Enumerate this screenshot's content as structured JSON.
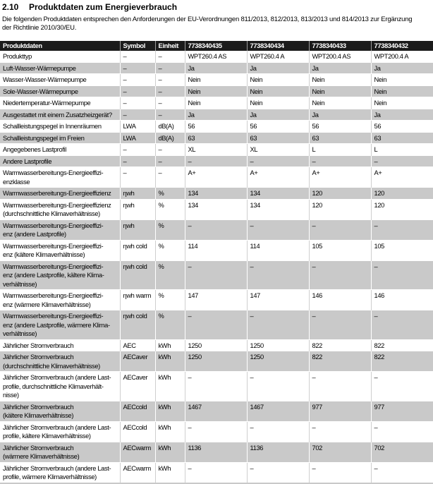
{
  "heading": {
    "number": "2.10",
    "title": "Produktdaten zum Energieverbrauch"
  },
  "intro": {
    "text": "Die folgenden Produktdaten entsprechen den Anforderungen der EU-Verordnungen 811/2013, 812/2013, 813/2013 und 814/2013 zur Ergänzung\nder Richtlinie 2010/30/EU."
  },
  "table": {
    "headers": [
      "Produktdaten",
      "Symbol",
      "Einheit",
      "7738340435",
      "7738340434",
      "7738340433",
      "7738340432"
    ],
    "rows": [
      {
        "label": "Produkttyp",
        "symbol": "–",
        "unit": "–",
        "values": [
          "WPT260.4 AS",
          "WPT260.4 A",
          "WPT200.4 AS",
          "WPT200.4 A"
        ]
      },
      {
        "label": "Luft-Wasser-Wärmepumpe",
        "symbol": "–",
        "unit": "–",
        "values": [
          "Ja",
          "Ja",
          "Ja",
          "Ja"
        ]
      },
      {
        "label": "Wasser-Wasser-Wärmepumpe",
        "symbol": "–",
        "unit": "–",
        "values": [
          "Nein",
          "Nein",
          "Nein",
          "Nein"
        ]
      },
      {
        "label": "Sole-Wasser-Wärmepumpe",
        "symbol": "–",
        "unit": "–",
        "values": [
          "Nein",
          "Nein",
          "Nein",
          "Nein"
        ]
      },
      {
        "label": "Niedertemperatur-Wärmepumpe",
        "symbol": "–",
        "unit": "–",
        "values": [
          "Nein",
          "Nein",
          "Nein",
          "Nein"
        ]
      },
      {
        "label": "Ausgestattet mit einem Zusatzheizgerät?",
        "symbol": "–",
        "unit": "–",
        "values": [
          "Ja",
          "Ja",
          "Ja",
          "Ja"
        ]
      },
      {
        "label": "Schallleistungspegel in Innenräumen",
        "symbol": "LWA",
        "unit": "dB(A)",
        "values": [
          "56",
          "56",
          "56",
          "56"
        ]
      },
      {
        "label": "Schallleistungspegel im Freien",
        "symbol": "LWA",
        "unit": "dB(A)",
        "values": [
          "63",
          "63",
          "63",
          "63"
        ]
      },
      {
        "label": "Angegebenes Lastprofil",
        "symbol": "–",
        "unit": "–",
        "values": [
          "XL",
          "XL",
          "L",
          "L"
        ]
      },
      {
        "label": "Andere Lastprofile",
        "symbol": "–",
        "unit": "–",
        "values": [
          "–",
          "–",
          "–",
          "–"
        ]
      },
      {
        "label": "Warmwasserbereitungs-Energieeffizi-\nenzklasse",
        "symbol": "–",
        "unit": "–",
        "values": [
          "A+",
          "A+",
          "A+",
          "A+"
        ]
      },
      {
        "label": "Warmwasserbereitungs-Energieeffizienz",
        "symbol": "ηwh",
        "unit": "%",
        "values": [
          "134",
          "134",
          "120",
          "120"
        ]
      },
      {
        "label": "Warmwasserbereitungs-Energieeffizienz\n(durchschnittliche Klimaverhältnisse)",
        "symbol": "ηwh",
        "unit": "%",
        "values": [
          "134",
          "134",
          "120",
          "120"
        ]
      },
      {
        "label": "Warmwasserbereitungs-Energieeffizi-\nenz (andere Lastprofile)",
        "symbol": "ηwh",
        "unit": "%",
        "values": [
          "–",
          "–",
          "–",
          "–"
        ]
      },
      {
        "label": "Warmwasserbereitungs-Energieeffizi-\nenz (kältere Klimaverhältnisse)",
        "symbol": "ηwh cold",
        "unit": "%",
        "values": [
          "114",
          "114",
          "105",
          "105"
        ]
      },
      {
        "label": "Warmwasserbereitungs-Energieeffizi-\nenz (andere Lastprofile, kältere Klima-\nverhältnisse)",
        "symbol": "ηwh cold",
        "unit": "%",
        "values": [
          "–",
          "–",
          "–",
          "–"
        ]
      },
      {
        "label": "Warmwasserbereitungs-Energieeffizi-\nenz (wärmere Klimaverhältnisse)",
        "symbol": "ηwh warm",
        "unit": "%",
        "values": [
          "147",
          "147",
          "146",
          "146"
        ]
      },
      {
        "label": "Warmwasserbereitungs-Energieeffizi-\nenz (andere Lastprofile, wärmere Klima-\nverhältnisse)",
        "symbol": "ηwh cold",
        "unit": "%",
        "values": [
          "–",
          "–",
          "–",
          "–"
        ]
      },
      {
        "label": "Jährlicher Stromverbrauch",
        "symbol": "AEC",
        "unit": "kWh",
        "values": [
          "1250",
          "1250",
          "822",
          "822"
        ]
      },
      {
        "label": "Jährlicher Stromverbrauch\n(durchschnittliche Klimaverhältnisse)",
        "symbol": "AECaver",
        "unit": "kWh",
        "values": [
          "1250",
          "1250",
          "822",
          "822"
        ]
      },
      {
        "label": "Jährlicher Stromverbrauch (andere Last-\nprofile, durchschnittliche Klimaverhält-\nnisse)",
        "symbol": "AECaver",
        "unit": "kWh",
        "values": [
          "–",
          "–",
          "–",
          "–"
        ]
      },
      {
        "label": "Jährlicher Stromverbrauch\n(kältere Klimaverhältnisse)",
        "symbol": "AECcold",
        "unit": "kWh",
        "values": [
          "1467",
          "1467",
          "977",
          "977"
        ]
      },
      {
        "label": "Jährlicher Stromverbrauch (andere Last-\nprofile, kältere Klimaverhältnisse)",
        "symbol": "AECcold",
        "unit": "kWh",
        "values": [
          "–",
          "–",
          "–",
          "–"
        ]
      },
      {
        "label": "Jährlicher Stromverbrauch\n(wärmere Klimaverhältnisse)",
        "symbol": "AECwarm",
        "unit": "kWh",
        "values": [
          "1136",
          "1136",
          "702",
          "702"
        ]
      },
      {
        "label": "Jährlicher Stromverbrauch (andere Last-\nprofile, wärmere Klimaverhältnisse)",
        "symbol": "AECwarm",
        "unit": "kWh",
        "values": [
          "–",
          "–",
          "–",
          "–"
        ]
      }
    ]
  },
  "colors": {
    "header_bg": "#1b1b1b",
    "header_text": "#ffffff",
    "alt_row_bg": "#c9c9c9"
  }
}
